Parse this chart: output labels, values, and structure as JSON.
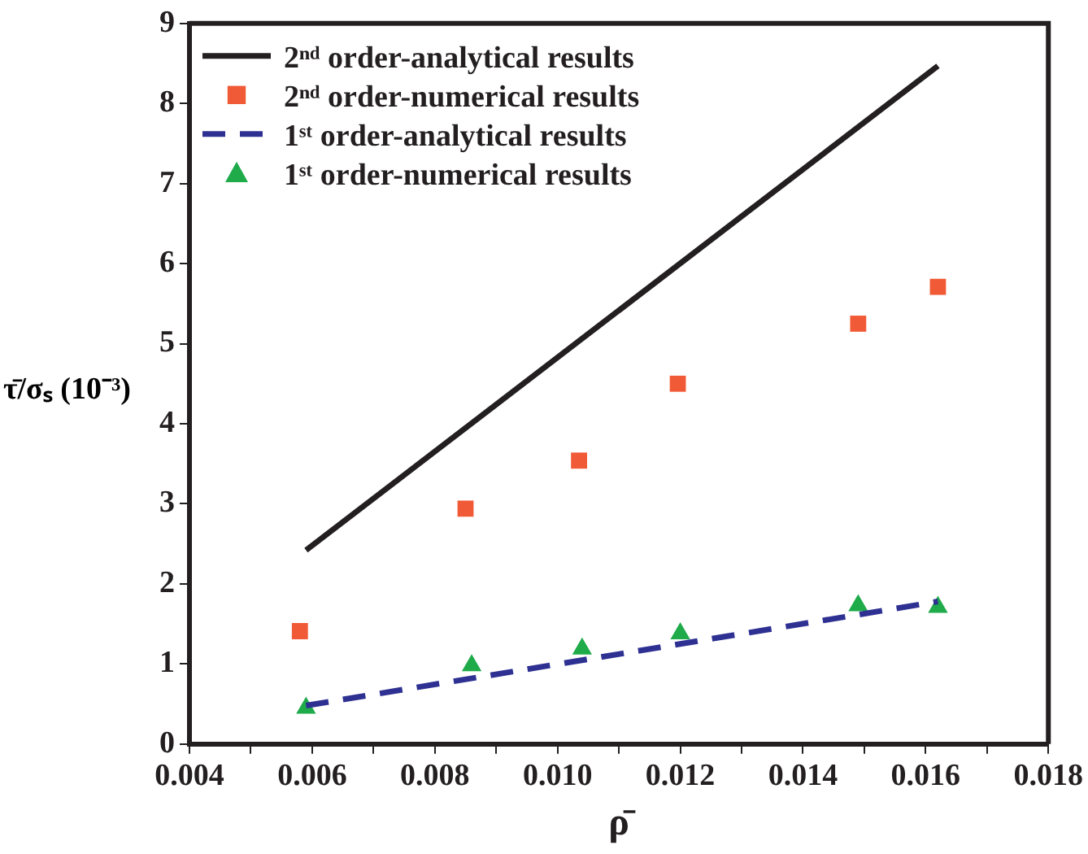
{
  "chart_data": {
    "type": "scatter",
    "xlabel": "ρ̄",
    "ylabel": "τ̄/σₛ (10⁻³)",
    "xlim": [
      0.004,
      0.018
    ],
    "ylim": [
      0,
      9
    ],
    "xticks": [
      0.004,
      {
        "value": 0.005,
        "label": null
      },
      0.006,
      {
        "value": 0.007,
        "label": null
      },
      0.008,
      {
        "value": 0.009,
        "label": null
      },
      {
        "value": 0.01,
        "label": "0.010"
      },
      {
        "value": 0.011,
        "label": null
      },
      0.012,
      {
        "value": 0.013,
        "label": null
      },
      0.014,
      {
        "value": 0.015,
        "label": null
      },
      0.016,
      {
        "value": 0.017,
        "label": null
      },
      0.018
    ],
    "yticks": [
      0,
      1,
      2,
      3,
      4,
      5,
      6,
      7,
      8,
      9
    ],
    "legend": "top left",
    "grid": false,
    "series": [
      {
        "name": "2ⁿᵈ order-analytical results",
        "type": "line",
        "color": "#231f20",
        "line_style": "solid",
        "marker": "none",
        "x": [
          0.0059,
          0.0162
        ],
        "values": [
          2.42,
          8.47
        ]
      },
      {
        "name": "2ⁿᵈ order-numerical results",
        "type": "scatter",
        "color": "#f15a36",
        "marker": "square",
        "x": [
          0.0058,
          0.0085,
          0.01035,
          0.01196,
          0.0149,
          0.0162
        ],
        "values": [
          1.41,
          2.94,
          3.54,
          4.5,
          5.25,
          5.71
        ]
      },
      {
        "name": "1ˢᵗ order-analytical results",
        "type": "line",
        "color": "#2e3192",
        "line_style": "dashed",
        "marker": "none",
        "x": [
          0.0059,
          0.0162
        ],
        "values": [
          0.48,
          1.78
        ]
      },
      {
        "name": "1ˢᵗ order-numerical results",
        "type": "scatter",
        "color": "#1fab4a",
        "marker": "triangle",
        "x": [
          0.0059,
          0.0086,
          0.0104,
          0.012,
          0.0149,
          0.0162
        ],
        "values": [
          0.45,
          0.98,
          1.19,
          1.38,
          1.73,
          1.71
        ]
      }
    ]
  }
}
